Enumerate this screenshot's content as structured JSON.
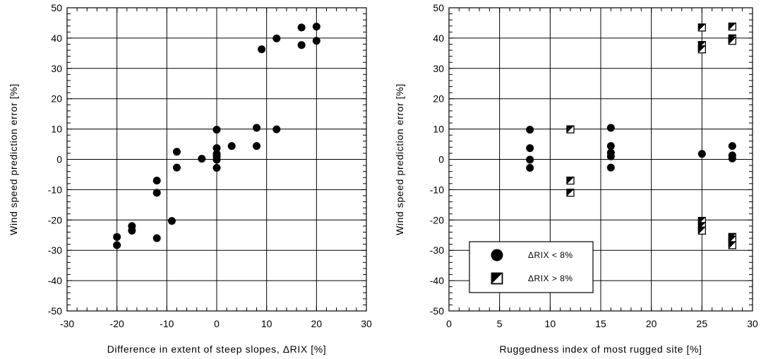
{
  "chart_data": [
    {
      "type": "scatter",
      "xlabel": "Difference in extent of steep slopes, ΔRIX [%]",
      "ylabel": "Wind speed prediction error [%]",
      "xlim": [
        -30,
        30
      ],
      "ylim": [
        -50,
        50
      ],
      "xticks": [
        -30,
        -20,
        -10,
        0,
        10,
        20,
        30
      ],
      "yticks": [
        -50,
        -40,
        -30,
        -20,
        -10,
        0,
        10,
        20,
        30,
        40,
        50
      ],
      "x_minor_step": 2,
      "y_minor_step": 2,
      "grid": true,
      "series": [
        {
          "marker": "filled-circle",
          "color": "#000000",
          "points": [
            [
              -20,
              -25.6
            ],
            [
              -20,
              -28.3
            ],
            [
              -17,
              -22
            ],
            [
              -17,
              -23.5
            ],
            [
              -12,
              -7
            ],
            [
              -12,
              -11
            ],
            [
              -12,
              -26
            ],
            [
              -9,
              -20.3
            ],
            [
              -8,
              2.5
            ],
            [
              -8,
              -2.7
            ],
            [
              -3,
              0.2
            ],
            [
              0,
              9.8
            ],
            [
              0,
              3.7
            ],
            [
              0,
              1.8
            ],
            [
              0,
              1
            ],
            [
              0,
              -0.1
            ],
            [
              0,
              -2.8
            ],
            [
              3,
              4.4
            ],
            [
              8,
              10.4
            ],
            [
              8,
              4.4
            ],
            [
              9,
              36.3
            ],
            [
              12,
              39.9
            ],
            [
              12,
              9.9
            ],
            [
              17,
              43.5
            ],
            [
              17,
              37.7
            ],
            [
              20,
              43.8
            ],
            [
              20,
              39.1
            ]
          ]
        }
      ]
    },
    {
      "type": "scatter",
      "xlabel": "Ruggedness index of most rugged site [%]",
      "ylabel": "Wind speed prediction error [%]",
      "xlim": [
        0,
        30
      ],
      "ylim": [
        -50,
        50
      ],
      "xticks": [
        0,
        5,
        10,
        15,
        20,
        25,
        30
      ],
      "yticks": [
        -50,
        -40,
        -30,
        -20,
        -10,
        0,
        10,
        20,
        30,
        40,
        50
      ],
      "x_minor_step": 1,
      "y_minor_step": 2,
      "grid": true,
      "legend_position": "bottom-left",
      "series": [
        {
          "name": "ΔRIX < 8%",
          "marker": "filled-circle",
          "color": "#000000",
          "points": [
            [
              8,
              9.8
            ],
            [
              8,
              3.7
            ],
            [
              8,
              -0.1
            ],
            [
              8,
              -2.8
            ],
            [
              16,
              10.4
            ],
            [
              16,
              4.4
            ],
            [
              16,
              2.2
            ],
            [
              16,
              1
            ],
            [
              16,
              -2.7
            ],
            [
              25,
              1.8
            ],
            [
              28,
              4.4
            ],
            [
              28,
              1.3
            ],
            [
              28,
              0.3
            ]
          ]
        },
        {
          "name": "ΔRIX > 8%",
          "marker": "half-filled-square",
          "color": "#000000",
          "points": [
            [
              12,
              9.9
            ],
            [
              12,
              -7
            ],
            [
              12,
              -11
            ],
            [
              25,
              43.5
            ],
            [
              25,
              37.7
            ],
            [
              25,
              36.3
            ],
            [
              25,
              -20.3
            ],
            [
              25,
              -22
            ],
            [
              25,
              -23.5
            ],
            [
              28,
              43.8
            ],
            [
              28,
              39.9
            ],
            [
              28,
              39.1
            ],
            [
              28,
              -25.6
            ],
            [
              28,
              -26.5
            ],
            [
              28,
              -28.3
            ]
          ]
        }
      ]
    }
  ]
}
